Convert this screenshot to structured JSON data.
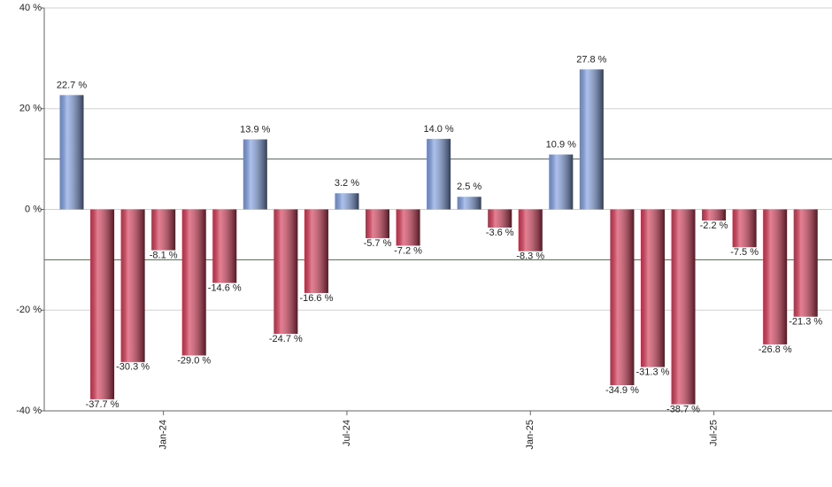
{
  "chart_data": {
    "type": "bar",
    "categories": [
      null,
      null,
      null,
      "Jan-24",
      null,
      null,
      null,
      null,
      null,
      "Jul-24",
      null,
      null,
      null,
      null,
      null,
      "Jan-25",
      null,
      null,
      null,
      null,
      null,
      "Jul-25",
      null,
      null,
      null
    ],
    "values": [
      22.7,
      -37.7,
      -30.3,
      -8.1,
      -29.0,
      -14.6,
      13.9,
      -24.7,
      -16.6,
      3.2,
      -5.7,
      -7.2,
      14.0,
      2.5,
      -3.6,
      -8.3,
      10.9,
      27.8,
      -34.9,
      -31.3,
      -38.7,
      -2.2,
      -7.5,
      -26.8,
      -21.3
    ],
    "value_labels": [
      "22.7 %",
      "-37.7 %",
      "-30.3 %",
      "-8.1 %",
      "-29.0 %",
      "-14.6 %",
      "13.9 %",
      "-24.7 %",
      "-16.6 %",
      "3.2 %",
      "-5.7 %",
      "-7.2 %",
      "14.0 %",
      "2.5 %",
      "-3.6 %",
      "-8.3 %",
      "10.9 %",
      "27.8 %",
      "-34.9 %",
      "-31.3 %",
      "-38.7 %",
      "-2.2 %",
      "-7.5 %",
      "-26.8 %",
      "-21.3 %"
    ],
    "positive_color": "#7f9ee0",
    "negative_color": "#d43a57",
    "ylim": [
      -40,
      40
    ],
    "yticks": [
      {
        "value": -40,
        "label": "-40 %"
      },
      {
        "value": -20,
        "label": "-20 %"
      },
      {
        "value": 0,
        "label": "0 %"
      },
      {
        "value": 20,
        "label": "20 %"
      },
      {
        "value": 40,
        "label": "40 %"
      }
    ],
    "reference_lines": [
      10,
      -10
    ],
    "reference_color": "#2e7d32",
    "grid": true
  }
}
